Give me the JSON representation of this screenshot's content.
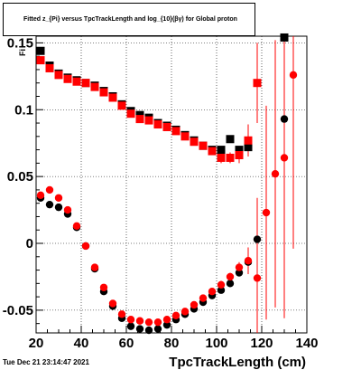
{
  "title": "Fitted z_{Pi} versus TpcTrackLength and log_{10}(βγ) for Global proton",
  "timestamp": "Tue Dec 21 23:14:47 2021",
  "chart_data": {
    "type": "scatter",
    "title": "Fitted z_{Pi} versus TpcTrackLength and log_{10}(βγ) for Global proton",
    "xlabel": "TpcTrackLength (cm)",
    "ylabel": "",
    "xlim": [
      20,
      140
    ],
    "ylim": [
      -0.067,
      0.155
    ],
    "xticks": [
      20,
      40,
      60,
      80,
      100,
      120,
      140
    ],
    "yticks": [
      -0.05,
      0,
      0.05,
      0.1,
      0.15
    ],
    "ytick_labels": [
      "-0.05",
      "0",
      "0.05",
      "0.1",
      "0.15"
    ],
    "grid": true,
    "series": [
      {
        "marker": "square",
        "color": "#000000",
        "x": [
          22,
          26,
          30,
          34,
          38,
          42,
          46,
          50,
          54,
          58,
          62,
          66,
          70,
          74,
          78,
          82,
          86,
          90,
          94,
          98,
          102,
          106,
          110,
          114,
          130
        ],
        "y": [
          0.144,
          0.133,
          0.127,
          0.124,
          0.122,
          0.12,
          0.118,
          0.114,
          0.11,
          0.104,
          0.099,
          0.096,
          0.094,
          0.09,
          0.088,
          0.085,
          0.081,
          0.077,
          0.073,
          0.07,
          0.07,
          0.078,
          0.07,
          0.072,
          0.154
        ]
      },
      {
        "marker": "square",
        "color": "#ff0000",
        "x": [
          22,
          26,
          30,
          34,
          38,
          42,
          46,
          50,
          54,
          58,
          62,
          66,
          70,
          74,
          78,
          82,
          86,
          90,
          94,
          98,
          102,
          106,
          110,
          114,
          118
        ],
        "y": [
          0.137,
          0.131,
          0.126,
          0.123,
          0.121,
          0.12,
          0.117,
          0.113,
          0.109,
          0.103,
          0.097,
          0.093,
          0.092,
          0.089,
          0.087,
          0.084,
          0.08,
          0.076,
          0.073,
          0.069,
          0.064,
          0.064,
          0.066,
          0.077,
          0.12
        ],
        "yerr": [
          0,
          0,
          0,
          0,
          0,
          0,
          0,
          0,
          0,
          0,
          0,
          0,
          0,
          0,
          0,
          0,
          0,
          0,
          0,
          0,
          0.004,
          0.004,
          0.006,
          0.012,
          0.03
        ]
      },
      {
        "marker": "circle",
        "color": "#000000",
        "x": [
          22,
          26,
          30,
          34,
          38,
          42,
          46,
          50,
          54,
          58,
          62,
          66,
          70,
          74,
          78,
          82,
          86,
          90,
          94,
          98,
          102,
          106,
          110,
          114,
          118,
          130
        ],
        "y": [
          0.034,
          0.029,
          0.027,
          0.022,
          0.012,
          -0.002,
          -0.019,
          -0.036,
          -0.047,
          -0.056,
          -0.062,
          -0.064,
          -0.065,
          -0.064,
          -0.061,
          -0.057,
          -0.053,
          -0.049,
          -0.044,
          -0.039,
          -0.035,
          -0.03,
          -0.022,
          -0.014,
          0.003,
          0.093
        ]
      },
      {
        "marker": "circle",
        "color": "#ff0000",
        "x": [
          22,
          26,
          30,
          34,
          38,
          42,
          46,
          50,
          54,
          58,
          62,
          66,
          70,
          74,
          78,
          82,
          86,
          90,
          94,
          98,
          102,
          106,
          110,
          114,
          118,
          122,
          126,
          130,
          134
        ],
        "y": [
          0.036,
          0.04,
          0.034,
          0.025,
          0.013,
          -0.002,
          -0.018,
          -0.033,
          -0.045,
          -0.053,
          -0.057,
          -0.058,
          -0.059,
          -0.059,
          -0.057,
          -0.054,
          -0.051,
          -0.046,
          -0.041,
          -0.036,
          -0.031,
          -0.025,
          -0.018,
          -0.013,
          -0.026,
          0.023,
          0.052,
          0.064,
          0.126
        ],
        "yerr": [
          0,
          0,
          0,
          0,
          0,
          0,
          0,
          0,
          0,
          0,
          0,
          0,
          0,
          0,
          0,
          0,
          0,
          0,
          0,
          0,
          0.003,
          0.003,
          0.004,
          0.01,
          0.06,
          0.08,
          0.1,
          0.12,
          0.13
        ]
      }
    ]
  }
}
